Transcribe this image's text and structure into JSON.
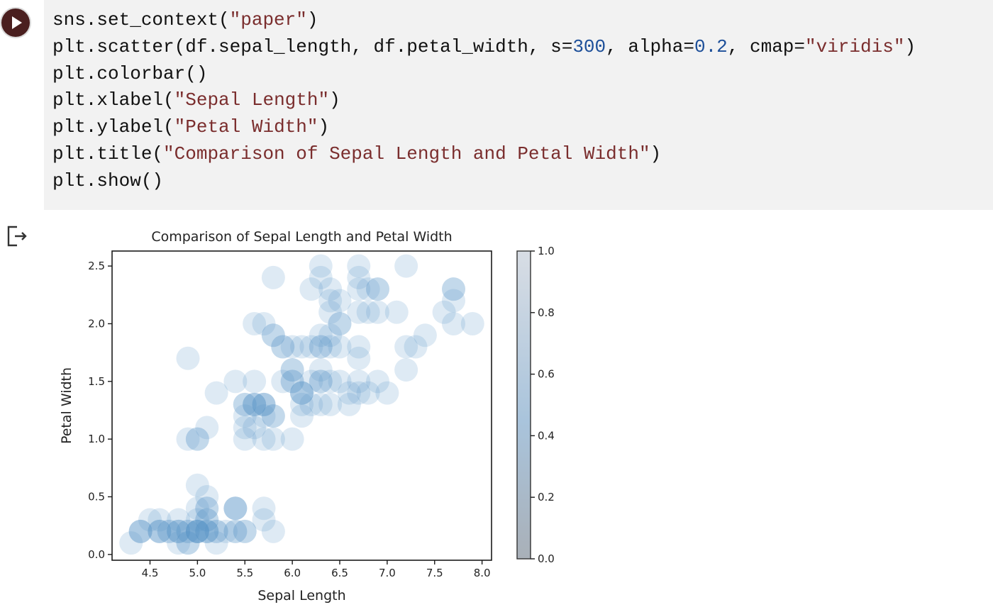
{
  "cell": {
    "code_lines": [
      [
        {
          "t": "sns.set_context("
        },
        {
          "t": "\"paper\"",
          "c": "s"
        },
        {
          "t": ")"
        }
      ],
      [
        {
          "t": "plt.scatter(df.sepal_length, df.petal_width, s="
        },
        {
          "t": "300",
          "c": "n"
        },
        {
          "t": ", alpha="
        },
        {
          "t": "0.2",
          "c": "n"
        },
        {
          "t": ", cmap="
        },
        {
          "t": "\"viridis\"",
          "c": "s"
        },
        {
          "t": ")"
        }
      ],
      [
        {
          "t": "plt.colorbar()"
        }
      ],
      [
        {
          "t": "plt.xlabel("
        },
        {
          "t": "\"Sepal Length\"",
          "c": "s"
        },
        {
          "t": ")"
        }
      ],
      [
        {
          "t": "plt.ylabel("
        },
        {
          "t": "\"Petal Width\"",
          "c": "s"
        },
        {
          "t": ")"
        }
      ],
      [
        {
          "t": "plt.title("
        },
        {
          "t": "\"Comparison of Sepal Length and Petal Width\"",
          "c": "s"
        },
        {
          "t": ")"
        }
      ],
      [
        {
          "t": "plt.show()"
        }
      ]
    ],
    "run_icon": "play-icon",
    "output_icon": "output-arrow-icon"
  },
  "colors": {
    "marker": "#5b98c8",
    "colorbar_top": "#d8dde4",
    "colorbar_bottom": "#a9b0b8",
    "editor_bg": "#f2f2f2"
  },
  "chart_data": {
    "type": "scatter",
    "title": "Comparison of Sepal Length and Petal Width",
    "xlabel": "Sepal Length",
    "ylabel": "Petal Width",
    "xlim": [
      4.1,
      8.1
    ],
    "ylim": [
      -0.05,
      2.63
    ],
    "xticks": [
      "4.5",
      "5.0",
      "5.5",
      "6.0",
      "6.5",
      "7.0",
      "7.5",
      "8.0"
    ],
    "yticks": [
      "0.0",
      "0.5",
      "1.0",
      "1.5",
      "2.0",
      "2.5"
    ],
    "colorbar": {
      "min": 0.0,
      "max": 1.0,
      "ticks": [
        "0.0",
        "0.2",
        "0.4",
        "0.6",
        "0.8",
        "1.0"
      ]
    },
    "marker_alpha": 0.2,
    "points": [
      [
        5.1,
        0.2
      ],
      [
        4.9,
        0.2
      ],
      [
        4.7,
        0.2
      ],
      [
        4.6,
        0.2
      ],
      [
        5.0,
        0.2
      ],
      [
        5.4,
        0.4
      ],
      [
        4.6,
        0.3
      ],
      [
        5.0,
        0.2
      ],
      [
        4.4,
        0.2
      ],
      [
        4.9,
        0.1
      ],
      [
        5.4,
        0.2
      ],
      [
        4.8,
        0.2
      ],
      [
        4.8,
        0.1
      ],
      [
        4.3,
        0.1
      ],
      [
        5.8,
        0.2
      ],
      [
        5.7,
        0.4
      ],
      [
        5.4,
        0.4
      ],
      [
        5.1,
        0.3
      ],
      [
        5.7,
        0.3
      ],
      [
        5.1,
        0.3
      ],
      [
        5.4,
        0.2
      ],
      [
        5.1,
        0.4
      ],
      [
        4.6,
        0.2
      ],
      [
        5.1,
        0.5
      ],
      [
        4.8,
        0.2
      ],
      [
        5.0,
        0.2
      ],
      [
        5.0,
        0.4
      ],
      [
        5.2,
        0.2
      ],
      [
        5.2,
        0.2
      ],
      [
        4.7,
        0.2
      ],
      [
        4.8,
        0.2
      ],
      [
        5.4,
        0.4
      ],
      [
        5.2,
        0.1
      ],
      [
        5.5,
        0.2
      ],
      [
        4.9,
        0.2
      ],
      [
        5.0,
        0.2
      ],
      [
        5.5,
        0.2
      ],
      [
        4.9,
        0.1
      ],
      [
        4.4,
        0.2
      ],
      [
        5.1,
        0.2
      ],
      [
        5.0,
        0.3
      ],
      [
        4.5,
        0.3
      ],
      [
        4.4,
        0.2
      ],
      [
        5.0,
        0.6
      ],
      [
        5.1,
        0.4
      ],
      [
        4.8,
        0.3
      ],
      [
        5.1,
        0.2
      ],
      [
        4.6,
        0.2
      ],
      [
        5.3,
        0.2
      ],
      [
        5.0,
        0.2
      ],
      [
        7.0,
        1.4
      ],
      [
        6.4,
        1.5
      ],
      [
        6.9,
        1.5
      ],
      [
        5.5,
        1.3
      ],
      [
        6.5,
        1.5
      ],
      [
        5.7,
        1.3
      ],
      [
        6.3,
        1.6
      ],
      [
        4.9,
        1.0
      ],
      [
        6.6,
        1.3
      ],
      [
        5.2,
        1.4
      ],
      [
        5.0,
        1.0
      ],
      [
        5.9,
        1.5
      ],
      [
        6.0,
        1.0
      ],
      [
        6.1,
        1.4
      ],
      [
        5.6,
        1.3
      ],
      [
        6.7,
        1.4
      ],
      [
        5.6,
        1.5
      ],
      [
        5.8,
        1.0
      ],
      [
        6.2,
        1.5
      ],
      [
        5.6,
        1.1
      ],
      [
        5.9,
        1.8
      ],
      [
        6.1,
        1.3
      ],
      [
        6.3,
        1.5
      ],
      [
        6.1,
        1.2
      ],
      [
        6.4,
        1.3
      ],
      [
        6.6,
        1.4
      ],
      [
        6.8,
        1.4
      ],
      [
        6.7,
        1.7
      ],
      [
        6.0,
        1.5
      ],
      [
        5.7,
        1.0
      ],
      [
        5.5,
        1.1
      ],
      [
        5.5,
        1.0
      ],
      [
        5.8,
        1.2
      ],
      [
        6.0,
        1.6
      ],
      [
        5.4,
        1.5
      ],
      [
        6.0,
        1.6
      ],
      [
        6.7,
        1.5
      ],
      [
        6.3,
        1.3
      ],
      [
        5.6,
        1.3
      ],
      [
        5.5,
        1.3
      ],
      [
        5.5,
        1.2
      ],
      [
        6.1,
        1.4
      ],
      [
        5.8,
        1.2
      ],
      [
        5.0,
        1.0
      ],
      [
        5.6,
        1.3
      ],
      [
        5.7,
        1.2
      ],
      [
        5.7,
        1.3
      ],
      [
        6.2,
        1.3
      ],
      [
        5.1,
        1.1
      ],
      [
        5.7,
        1.3
      ],
      [
        6.3,
        2.5
      ],
      [
        5.8,
        1.9
      ],
      [
        7.1,
        2.1
      ],
      [
        6.3,
        1.8
      ],
      [
        6.5,
        2.2
      ],
      [
        7.6,
        2.1
      ],
      [
        4.9,
        1.7
      ],
      [
        7.3,
        1.8
      ],
      [
        6.7,
        1.8
      ],
      [
        7.2,
        2.5
      ],
      [
        6.5,
        2.0
      ],
      [
        6.4,
        1.9
      ],
      [
        6.8,
        2.1
      ],
      [
        5.7,
        2.0
      ],
      [
        5.8,
        2.4
      ],
      [
        6.4,
        2.3
      ],
      [
        6.5,
        1.8
      ],
      [
        7.7,
        2.2
      ],
      [
        7.7,
        2.3
      ],
      [
        6.0,
        1.5
      ],
      [
        6.9,
        2.3
      ],
      [
        5.6,
        2.0
      ],
      [
        7.7,
        2.0
      ],
      [
        6.3,
        1.8
      ],
      [
        6.7,
        2.1
      ],
      [
        7.2,
        1.8
      ],
      [
        6.2,
        1.8
      ],
      [
        6.1,
        1.8
      ],
      [
        6.4,
        2.1
      ],
      [
        7.2,
        1.6
      ],
      [
        7.4,
        1.9
      ],
      [
        7.9,
        2.0
      ],
      [
        6.4,
        2.2
      ],
      [
        6.3,
        1.5
      ],
      [
        6.1,
        1.4
      ],
      [
        7.7,
        2.3
      ],
      [
        6.3,
        2.4
      ],
      [
        6.4,
        1.8
      ],
      [
        6.0,
        1.8
      ],
      [
        6.9,
        2.1
      ],
      [
        6.7,
        2.4
      ],
      [
        6.9,
        2.3
      ],
      [
        5.8,
        1.9
      ],
      [
        6.8,
        2.3
      ],
      [
        6.7,
        2.5
      ],
      [
        6.7,
        2.3
      ],
      [
        6.3,
        1.9
      ],
      [
        6.5,
        2.0
      ],
      [
        6.2,
        2.3
      ],
      [
        5.9,
        1.8
      ]
    ]
  }
}
